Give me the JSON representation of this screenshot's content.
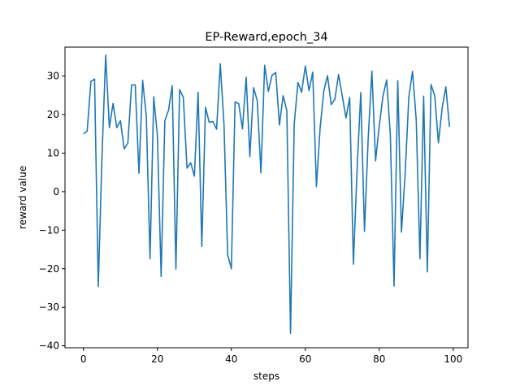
{
  "chart_data": {
    "type": "line",
    "title": "EP-Reward,epoch_34",
    "xlabel": "steps",
    "ylabel": "reward value",
    "xlim": [
      -5,
      104
    ],
    "ylim": [
      -40.5,
      37.5
    ],
    "xticks": [
      0,
      20,
      40,
      60,
      80,
      100
    ],
    "yticks": [
      -40,
      -30,
      -20,
      -10,
      0,
      10,
      20,
      30
    ],
    "grid": false,
    "color": "#1f77b4",
    "series": [
      {
        "x": [
          0,
          1,
          2,
          3,
          4,
          5,
          6,
          7,
          8,
          9,
          10,
          11,
          12,
          13,
          14,
          15,
          16,
          17,
          18,
          19,
          20,
          21,
          22,
          23,
          24,
          25,
          26,
          27,
          28,
          29,
          30,
          31,
          32,
          33,
          34,
          35,
          36,
          37,
          38,
          39,
          40,
          41,
          42,
          43,
          44,
          45,
          46,
          47,
          48,
          49,
          50,
          51,
          52,
          53,
          54,
          55,
          56,
          57,
          58,
          59,
          60,
          61,
          62,
          63,
          64,
          65,
          66,
          67,
          68,
          69,
          70,
          71,
          72,
          73,
          74,
          75,
          76,
          77,
          78,
          79,
          80,
          81,
          82,
          83,
          84,
          85,
          86,
          87,
          88,
          89,
          90,
          91,
          92,
          93,
          94,
          95,
          96,
          97,
          98,
          99
        ],
        "values": [
          15,
          15.7,
          28.6,
          29.2,
          -24.6,
          9,
          35.4,
          16.6,
          22.9,
          16.6,
          18.4,
          11.1,
          12.6,
          27.7,
          27.7,
          4.8,
          28.9,
          19.4,
          -17.4,
          24.6,
          14.4,
          -22,
          18.4,
          21.1,
          27.5,
          -20.1,
          26.5,
          24.5,
          6.1,
          7.5,
          4,
          25.8,
          -14.2,
          21.9,
          18,
          18.2,
          16.2,
          33.2,
          17.5,
          -16.4,
          -20,
          23.3,
          22.8,
          16.3,
          29.7,
          9.1,
          27,
          23.6,
          4.9,
          32.8,
          26,
          30.2,
          30.9,
          17.3,
          24.9,
          21,
          -36.8,
          17.6,
          28.3,
          25.8,
          32.6,
          26.2,
          31,
          1.3,
          16.5,
          26.1,
          30.1,
          22.6,
          24,
          30.4,
          24.8,
          19.1,
          24.4,
          -18.8,
          5.8,
          25.7,
          -10.3,
          13.7,
          31.3,
          8,
          17.1,
          24.8,
          29,
          14.6,
          -24.5,
          28.8,
          -10.5,
          4.6,
          24.6,
          31.2,
          18.6,
          -17.4,
          24.8,
          -20.8,
          27.8,
          24.9,
          12.7,
          21.6,
          27.2,
          16.8
        ]
      }
    ]
  }
}
